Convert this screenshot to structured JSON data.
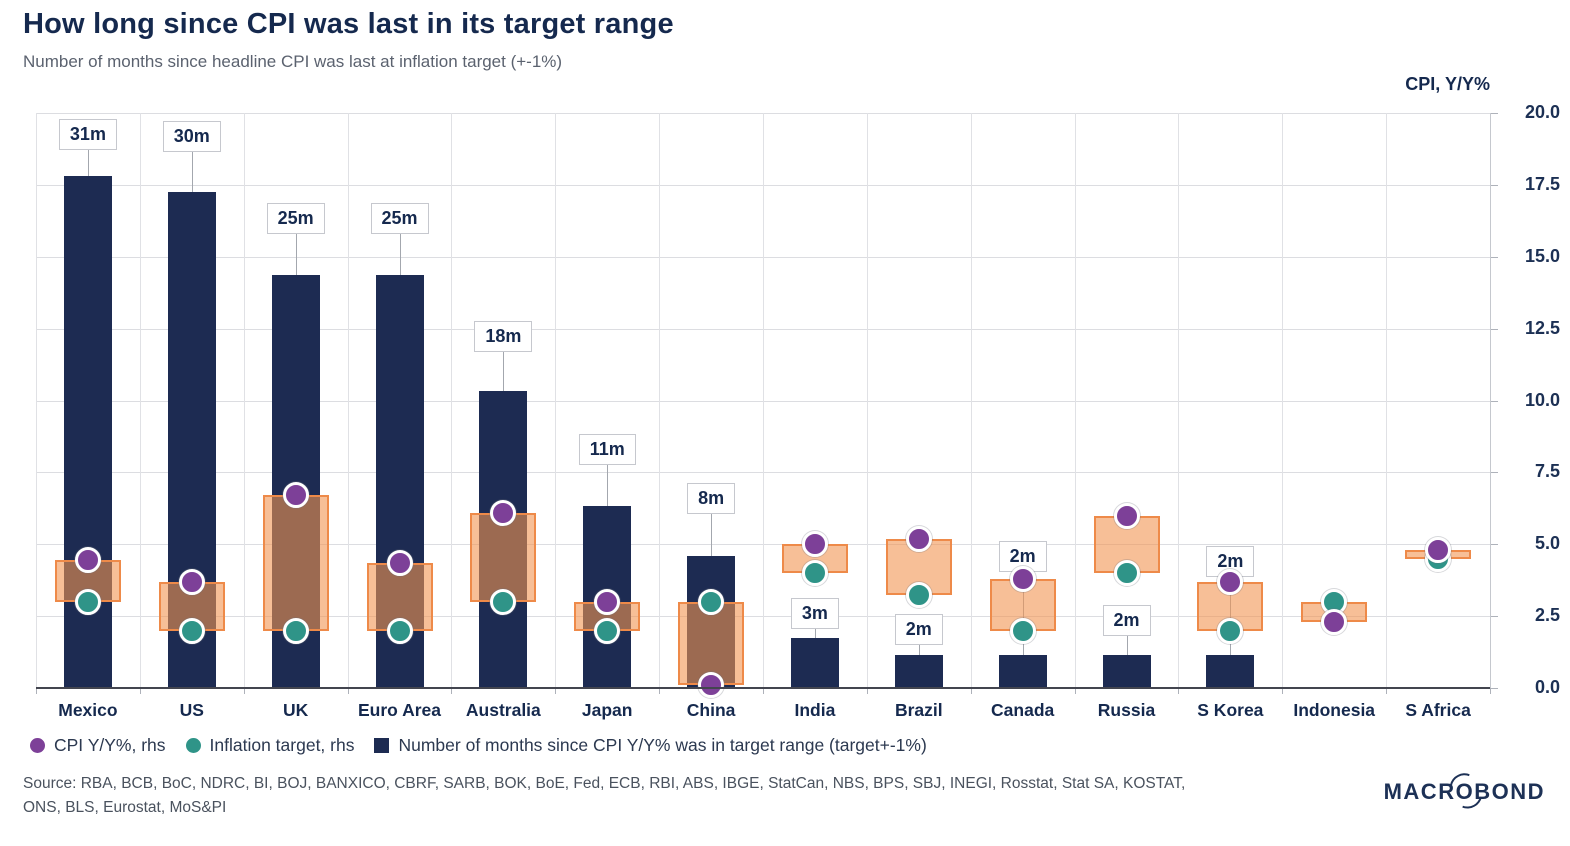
{
  "header": {
    "title": "How long since CPI was last in its target range",
    "subtitle": "Number of months since headline CPI was last at inflation target (+-1%)"
  },
  "axis_right": {
    "title": "CPI, Y/Y%",
    "min": 0,
    "max": 20,
    "tick_step": 2.5,
    "tick_labels": [
      "20.0",
      "17.5",
      "15.0",
      "12.5",
      "10.0",
      "7.5",
      "5.0",
      "2.5",
      "0.0"
    ]
  },
  "chart_data": {
    "type": "bar",
    "categories": [
      "Mexico",
      "US",
      "UK",
      "Euro Area",
      "Australia",
      "Japan",
      "China",
      "India",
      "Brazil",
      "Canada",
      "Russia",
      "S Korea",
      "Indonesia",
      "S Africa"
    ],
    "series": [
      {
        "name": "Number of months since CPI Y/Y% was in target range (target+-1%)",
        "marker": "bar",
        "axis": "months",
        "values": [
          31,
          30,
          25,
          25,
          18,
          11,
          8,
          3,
          2,
          2,
          2,
          2,
          0,
          0
        ],
        "labels": [
          "31m",
          "30m",
          "25m",
          "25m",
          "18m",
          "11m",
          "8m",
          "3m",
          "2m",
          "2m",
          "2m",
          "2m",
          "",
          ""
        ]
      },
      {
        "name": "CPI Y/Y%, rhs",
        "marker": "dot",
        "axis": "rhs",
        "values": [
          4.45,
          3.7,
          6.7,
          4.35,
          6.1,
          3.0,
          0.1,
          5.0,
          5.2,
          3.8,
          6.0,
          3.7,
          2.3,
          4.8
        ]
      },
      {
        "name": "Inflation target, rhs",
        "marker": "dot",
        "axis": "rhs",
        "values": [
          3.0,
          2.0,
          2.0,
          2.0,
          3.0,
          2.0,
          3.0,
          4.0,
          3.25,
          2.0,
          4.0,
          2.0,
          3.0,
          4.5
        ]
      }
    ],
    "range_box": "orange box spans between CPI Y/Y% and inflation target for each country",
    "ylim_rhs": [
      0,
      20
    ],
    "grid": true,
    "legend_position": "bottom"
  },
  "legend": {
    "items": [
      {
        "label": "CPI Y/Y%, rhs",
        "marker": "dot",
        "color": "#7d4098"
      },
      {
        "label": "Inflation target, rhs",
        "marker": "dot",
        "color": "#2f9488"
      },
      {
        "label": "Number of months since CPI Y/Y% was in target range (target+-1%)",
        "marker": "square",
        "color": "#1d2b52"
      }
    ]
  },
  "footer": {
    "source_lines": [
      "Source: RBA, BCB, BoC, NDRC, BI, BOJ, BANXICO, CBRF, SARB, BOK, BoE, Fed, ECB, RBI, ABS, IBGE, StatCan, NBS, BPS, SBJ, INEGI, Rosstat, Stat SA, KOSTAT,",
      "ONS, BLS, Eurostat, MoS&PI"
    ],
    "logo_left": "MACR",
    "logo_o": "O",
    "logo_right": "BOND"
  },
  "colors": {
    "bar_navy": "#1d2b52",
    "cpi_purple": "#7d4098",
    "target_green": "#2f9488",
    "range_border_orange": "#ee8a49",
    "range_fill_orange": "rgba(242,148,81,0.6)",
    "gridline": "#dcdde1",
    "title_navy": "#15294e"
  }
}
